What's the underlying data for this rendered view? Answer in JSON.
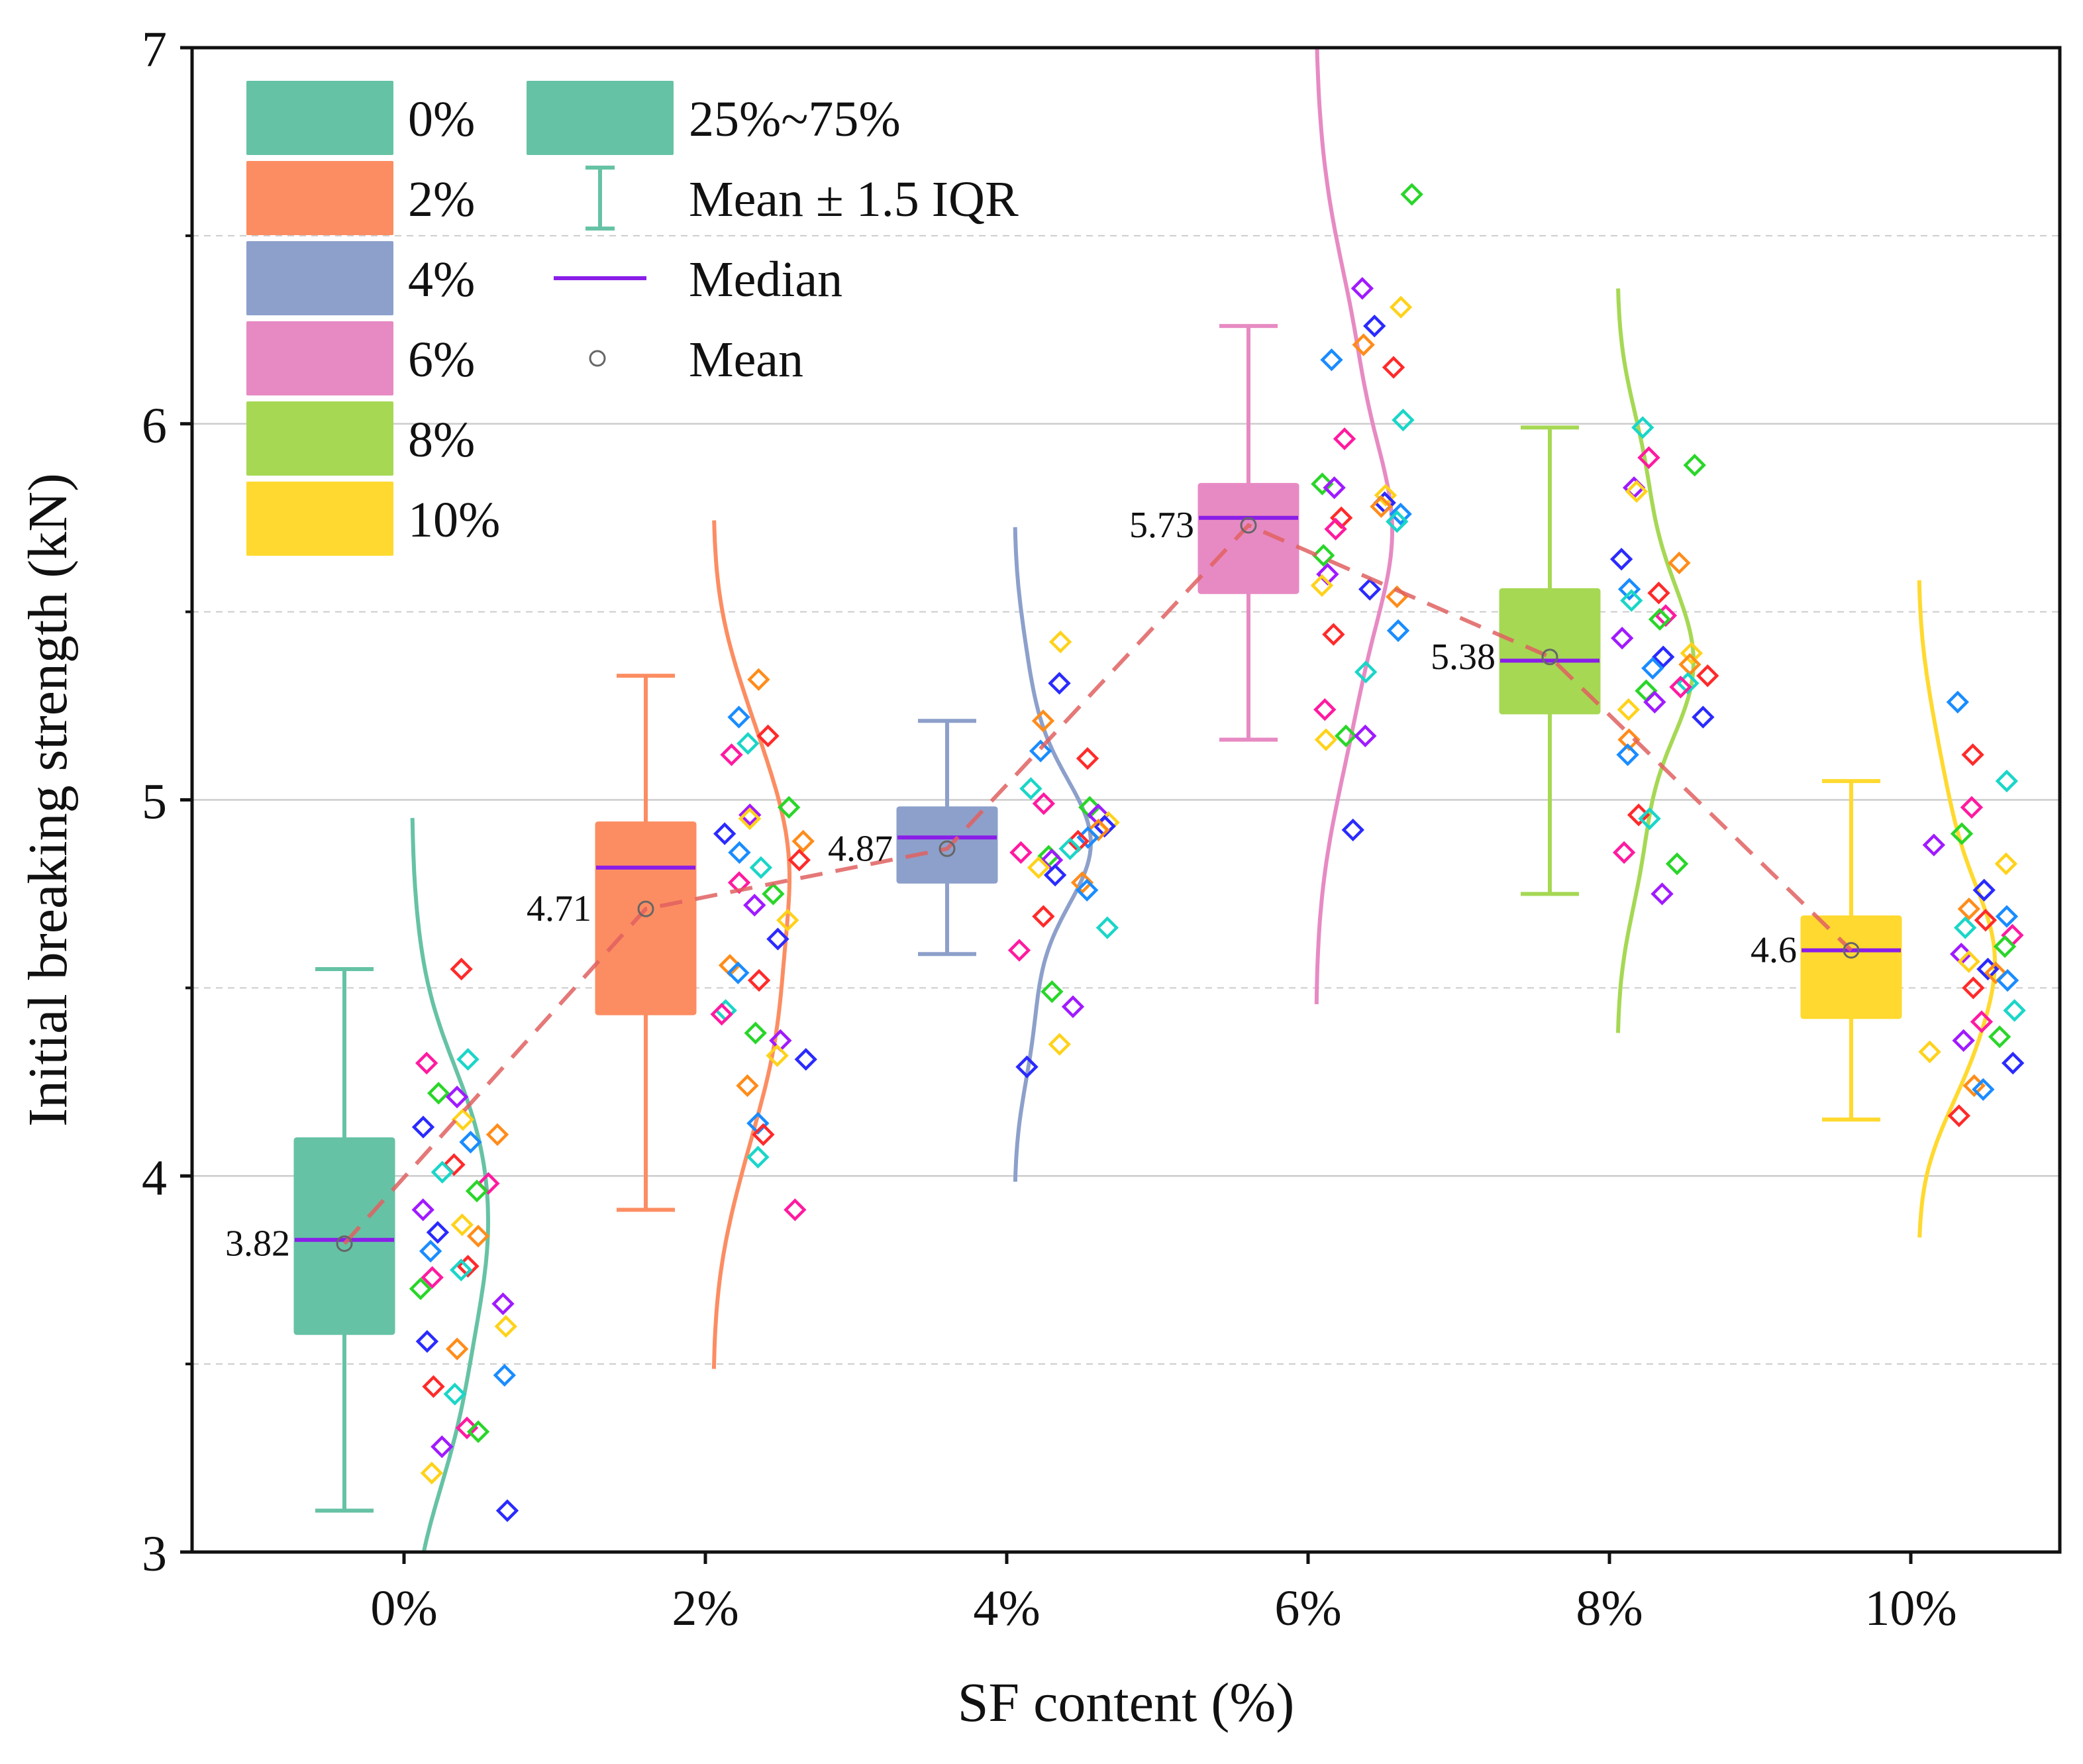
{
  "chart_data": {
    "type": "box",
    "xlabel": "SF content (%)",
    "ylabel": "Initial breaking strength (kN)",
    "categories": [
      "0%",
      "2%",
      "4%",
      "6%",
      "8%",
      "10%"
    ],
    "ylim": [
      3,
      7
    ],
    "yticks": [
      3,
      4,
      5,
      6,
      7
    ],
    "grid": "horizontal",
    "colors": [
      "#66c2a5",
      "#fc8d62",
      "#8da0cb",
      "#e78ac3",
      "#a6d854",
      "#ffd92f"
    ],
    "median_color": "#8a1ee8",
    "mean_line_color": "#e06060",
    "point_colors": [
      "#ff2a2a",
      "#ff8c1a",
      "#ffd21a",
      "#29d629",
      "#1ad6c8",
      "#1a8cff",
      "#2a2aff",
      "#a01aff",
      "#ff1aa0"
    ],
    "series": [
      {
        "name": "0%",
        "q1": 3.58,
        "q3": 4.1,
        "median": 3.83,
        "mean": 3.82,
        "mean_label": "3.82",
        "whisker_low": 3.11,
        "whisker_high": 4.55,
        "points": [
          4.55,
          4.31,
          4.3,
          4.22,
          4.21,
          4.15,
          4.13,
          4.11,
          4.09,
          4.03,
          4.01,
          3.98,
          3.96,
          3.91,
          3.87,
          3.85,
          3.84,
          3.8,
          3.76,
          3.75,
          3.73,
          3.7,
          3.66,
          3.6,
          3.56,
          3.54,
          3.47,
          3.44,
          3.42,
          3.33,
          3.32,
          3.28,
          3.21,
          3.11
        ]
      },
      {
        "name": "2%",
        "q1": 4.43,
        "q3": 4.94,
        "median": 4.82,
        "mean": 4.71,
        "mean_label": "4.71",
        "whisker_low": 3.91,
        "whisker_high": 5.33,
        "points": [
          5.32,
          5.22,
          5.17,
          5.15,
          5.12,
          4.98,
          4.96,
          4.95,
          4.91,
          4.89,
          4.86,
          4.84,
          4.82,
          4.78,
          4.75,
          4.72,
          4.68,
          4.63,
          4.56,
          4.54,
          4.52,
          4.44,
          4.43,
          4.38,
          4.36,
          4.32,
          4.31,
          4.24,
          4.14,
          4.11,
          4.05,
          3.91
        ]
      },
      {
        "name": "4%",
        "q1": 4.78,
        "q3": 4.98,
        "median": 4.9,
        "mean": 4.87,
        "mean_label": "4.87",
        "whisker_low": 4.59,
        "whisker_high": 5.21,
        "points": [
          5.42,
          5.31,
          5.21,
          5.13,
          5.11,
          5.03,
          4.99,
          4.98,
          4.96,
          4.94,
          4.93,
          4.92,
          4.9,
          4.89,
          4.87,
          4.86,
          4.85,
          4.84,
          4.82,
          4.8,
          4.78,
          4.76,
          4.69,
          4.66,
          4.6,
          4.49,
          4.45,
          4.35,
          4.29
        ]
      },
      {
        "name": "6%",
        "q1": 5.55,
        "q3": 5.84,
        "median": 5.75,
        "mean": 5.73,
        "mean_label": "5.73",
        "whisker_low": 5.16,
        "whisker_high": 6.26,
        "points": [
          6.61,
          6.36,
          6.31,
          6.26,
          6.21,
          6.17,
          6.15,
          6.01,
          5.96,
          5.84,
          5.83,
          5.81,
          5.79,
          5.78,
          5.76,
          5.75,
          5.74,
          5.72,
          5.65,
          5.6,
          5.57,
          5.56,
          5.54,
          5.45,
          5.44,
          5.34,
          5.24,
          5.17,
          5.17,
          5.16,
          4.92
        ]
      },
      {
        "name": "8%",
        "q1": 5.23,
        "q3": 5.56,
        "median": 5.37,
        "mean": 5.38,
        "mean_label": "5.38",
        "whisker_low": 4.75,
        "whisker_high": 5.99,
        "points": [
          5.99,
          5.91,
          5.89,
          5.83,
          5.82,
          5.64,
          5.63,
          5.56,
          5.55,
          5.53,
          5.49,
          5.48,
          5.43,
          5.39,
          5.38,
          5.36,
          5.35,
          5.33,
          5.31,
          5.3,
          5.29,
          5.26,
          5.24,
          5.22,
          5.16,
          5.12,
          4.96,
          4.95,
          4.86,
          4.83,
          4.75
        ]
      },
      {
        "name": "10%",
        "q1": 4.42,
        "q3": 4.69,
        "median": 4.6,
        "mean": 4.6,
        "mean_label": "4.6",
        "whisker_low": 4.15,
        "whisker_high": 5.05,
        "points": [
          5.26,
          5.12,
          5.05,
          4.98,
          4.91,
          4.88,
          4.83,
          4.76,
          4.71,
          4.69,
          4.68,
          4.66,
          4.64,
          4.61,
          4.59,
          4.57,
          4.55,
          4.54,
          4.52,
          4.5,
          4.44,
          4.41,
          4.37,
          4.36,
          4.33,
          4.3,
          4.24,
          4.23,
          4.16
        ]
      }
    ],
    "legend": {
      "categories": [
        "0%",
        "2%",
        "4%",
        "6%",
        "8%",
        "10%"
      ],
      "box_label": "25%~75%",
      "whisker_label": "Mean ± 1.5 IQR",
      "median_label": "Median",
      "mean_label": "Mean",
      "placement": "top-left"
    }
  }
}
